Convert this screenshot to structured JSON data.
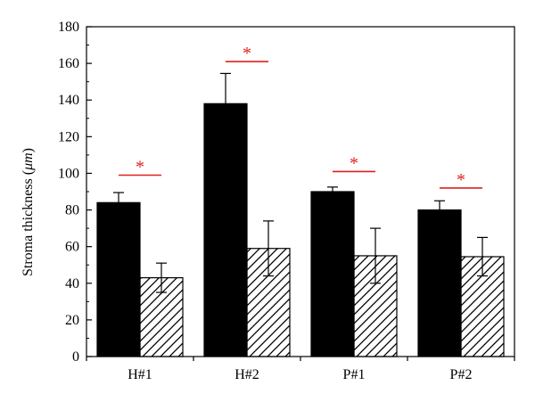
{
  "chart_data": {
    "type": "bar",
    "title": "",
    "xlabel": "",
    "ylabel": "Stroma thickness (μm)",
    "ylabel_parts": [
      "Stroma thickness (",
      "μm",
      ")"
    ],
    "ylim": [
      0,
      180
    ],
    "yticks": [
      0,
      20,
      40,
      60,
      80,
      100,
      120,
      140,
      160,
      180
    ],
    "grid": false,
    "categories": [
      "H#1",
      "H#2",
      "P#1",
      "P#2"
    ],
    "series": [
      {
        "fill": "solid-black",
        "values": [
          84,
          138,
          90,
          80
        ],
        "errors": [
          5.5,
          16.5,
          2.5,
          5
        ]
      },
      {
        "fill": "diagonal-hatch",
        "values": [
          43,
          59,
          55,
          54.5
        ],
        "errors": [
          8,
          15,
          15,
          10.5
        ]
      }
    ],
    "annotations": [
      {
        "category": "H#1",
        "text": "*",
        "y": 99
      },
      {
        "category": "H#2",
        "text": "*",
        "y": 161
      },
      {
        "category": "P#1",
        "text": "*",
        "y": 101
      },
      {
        "category": "P#2",
        "text": "*",
        "y": 92
      }
    ],
    "annotation_color": "#e0201b"
  }
}
